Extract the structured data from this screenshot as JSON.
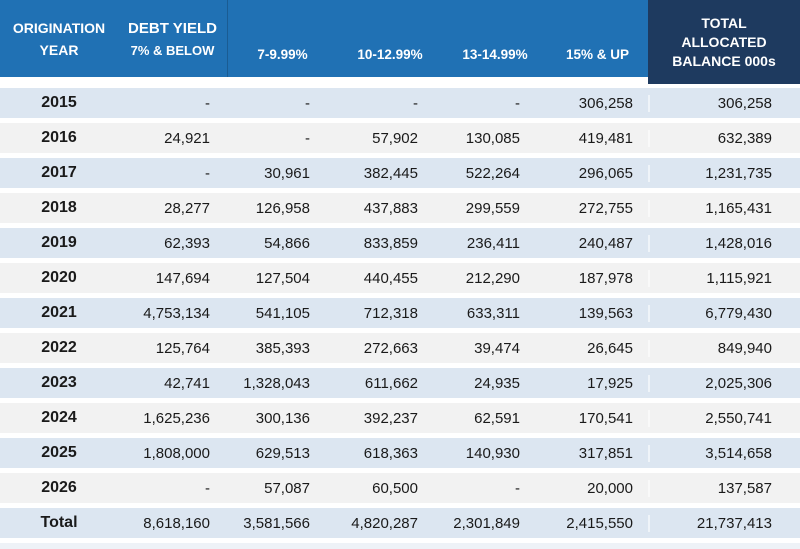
{
  "colors": {
    "header_blue": "#2071b4",
    "header_navy": "#1e3a5f",
    "row_blue": "#dce6f1",
    "row_grey": "#f2f2f2",
    "strip": "#eef2f7",
    "text": "#1a1a1a",
    "header_text": "#ffffff"
  },
  "table": {
    "header": {
      "origination_line1": "ORIGINATION",
      "origination_line2": "YEAR",
      "debt_yield": "DEBT YIELD",
      "debt_yield_sub": "7% & BELOW",
      "ranges": [
        "7-9.99%",
        "10-12.99%",
        "13-14.99%",
        "15% & UP"
      ],
      "total_line1": "TOTAL",
      "total_line2": "ALLOCATED",
      "total_line3": "BALANCE 000s"
    },
    "rows": [
      {
        "year": "2015",
        "values": [
          "-",
          "-",
          "-",
          "-",
          "306,258"
        ],
        "total": "306,258"
      },
      {
        "year": "2016",
        "values": [
          "24,921",
          "-",
          "57,902",
          "130,085",
          "419,481"
        ],
        "total": "632,389"
      },
      {
        "year": "2017",
        "values": [
          "-",
          "30,961",
          "382,445",
          "522,264",
          "296,065"
        ],
        "total": "1,231,735"
      },
      {
        "year": "2018",
        "values": [
          "28,277",
          "126,958",
          "437,883",
          "299,559",
          "272,755"
        ],
        "total": "1,165,431"
      },
      {
        "year": "2019",
        "values": [
          "62,393",
          "54,866",
          "833,859",
          "236,411",
          "240,487"
        ],
        "total": "1,428,016"
      },
      {
        "year": "2020",
        "values": [
          "147,694",
          "127,504",
          "440,455",
          "212,290",
          "187,978"
        ],
        "total": "1,115,921"
      },
      {
        "year": "2021",
        "values": [
          "4,753,134",
          "541,105",
          "712,318",
          "633,311",
          "139,563"
        ],
        "total": "6,779,430"
      },
      {
        "year": "2022",
        "values": [
          "125,764",
          "385,393",
          "272,663",
          "39,474",
          "26,645"
        ],
        "total": "849,940"
      },
      {
        "year": "2023",
        "values": [
          "42,741",
          "1,328,043",
          "611,662",
          "24,935",
          "17,925"
        ],
        "total": "2,025,306"
      },
      {
        "year": "2024",
        "values": [
          "1,625,236",
          "300,136",
          "392,237",
          "62,591",
          "170,541"
        ],
        "total": "2,550,741"
      },
      {
        "year": "2025",
        "values": [
          "1,808,000",
          "629,513",
          "618,363",
          "140,930",
          "317,851"
        ],
        "total": "3,514,658"
      },
      {
        "year": "2026",
        "values": [
          "-",
          "57,087",
          "60,500",
          "-",
          "20,000"
        ],
        "total": "137,587"
      }
    ],
    "footer": {
      "label": "Total",
      "values": [
        "8,618,160",
        "3,581,566",
        "4,820,287",
        "2,301,849",
        "2,415,550"
      ],
      "total": "21,737,413"
    }
  },
  "chart_data": {
    "type": "table",
    "columns": [
      "ORIGINATION YEAR",
      "DEBT YIELD 7% & BELOW",
      "7-9.99%",
      "10-12.99%",
      "13-14.99%",
      "15% & UP",
      "TOTAL ALLOCATED BALANCE 000s"
    ],
    "units": "thousands (000s)",
    "rows": [
      [
        "2015",
        null,
        null,
        null,
        null,
        306258,
        306258
      ],
      [
        "2016",
        24921,
        null,
        57902,
        130085,
        419481,
        632389
      ],
      [
        "2017",
        null,
        30961,
        382445,
        522264,
        296065,
        1231735
      ],
      [
        "2018",
        28277,
        126958,
        437883,
        299559,
        272755,
        1165431
      ],
      [
        "2019",
        62393,
        54866,
        833859,
        236411,
        240487,
        1428016
      ],
      [
        "2020",
        147694,
        127504,
        440455,
        212290,
        187978,
        1115921
      ],
      [
        "2021",
        4753134,
        541105,
        712318,
        633311,
        139563,
        6779430
      ],
      [
        "2022",
        125764,
        385393,
        272663,
        39474,
        26645,
        849940
      ],
      [
        "2023",
        42741,
        1328043,
        611662,
        24935,
        17925,
        2025306
      ],
      [
        "2024",
        1625236,
        300136,
        392237,
        62591,
        170541,
        2550741
      ],
      [
        "2025",
        1808000,
        629513,
        618363,
        140930,
        317851,
        3514658
      ],
      [
        "2026",
        null,
        57087,
        60500,
        null,
        20000,
        137587
      ],
      [
        "Total",
        8618160,
        3581566,
        4820287,
        2301849,
        2415550,
        21737413
      ]
    ]
  }
}
